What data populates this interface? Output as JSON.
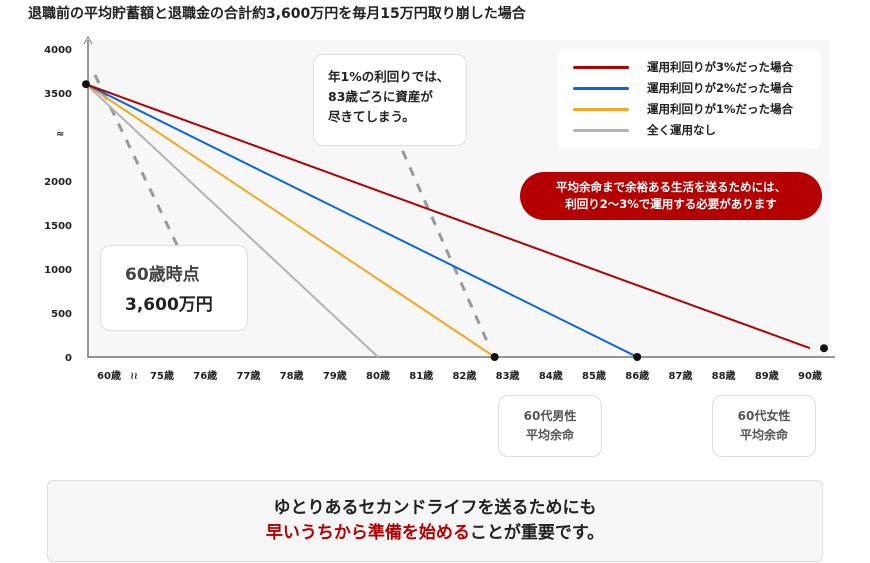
{
  "chart_data": {
    "type": "line",
    "title": "退職前の平均貯蓄額と退職金の合計約3,600万円を毎月15万円取り崩した場合",
    "y_ticks": [
      "0",
      "500",
      "1000",
      "1500",
      "2000",
      "3500",
      "4000"
    ],
    "y_break_symbol": "≈",
    "x_ticks": [
      "60歳",
      "75歳",
      "76歳",
      "77歳",
      "78歳",
      "79歳",
      "80歳",
      "81歳",
      "82歳",
      "83歳",
      "84歳",
      "85歳",
      "86歳",
      "87歳",
      "88歳",
      "89歳",
      "90歳"
    ],
    "x_break_symbol": "≀≀",
    "ylim": [
      0,
      4000
    ],
    "series": [
      {
        "name": "運用利回りが3%だった場合",
        "color": "#b40000",
        "points": [
          [
            60,
            3600
          ],
          [
            90,
            100
          ]
        ]
      },
      {
        "name": "運用利回りが2%だった場合",
        "color": "#0a66e0",
        "points": [
          [
            60,
            3600
          ],
          [
            86,
            0
          ]
        ]
      },
      {
        "name": "運用利回りが1%だった場合",
        "color": "#f5a623",
        "points": [
          [
            60,
            3600
          ],
          [
            82.7,
            0
          ]
        ]
      },
      {
        "name": "全く運用なし",
        "color": "#b3b3b3",
        "points": [
          [
            60,
            3600
          ],
          [
            80,
            0
          ]
        ]
      }
    ],
    "legend_position": "top-right",
    "annotations": {
      "start": [
        "60歳時点",
        "3,600万円"
      ],
      "one_percent": [
        "年1%の利回りでは、",
        "83歳ごろに資産が",
        "尽きてしまう。"
      ],
      "pill": [
        "平均余命まで余裕ある生活を送るためには、",
        "利回り2〜3%で運用する必要があります"
      ],
      "male": [
        "60代男性",
        "平均余命"
      ],
      "female": [
        "60代女性",
        "平均余命"
      ]
    }
  },
  "footer": {
    "line1": "ゆとりあるセカンドライフを送るためにも",
    "line2_red": "早いうちから準備を始める",
    "line2_rest": "ことが重要です。"
  }
}
